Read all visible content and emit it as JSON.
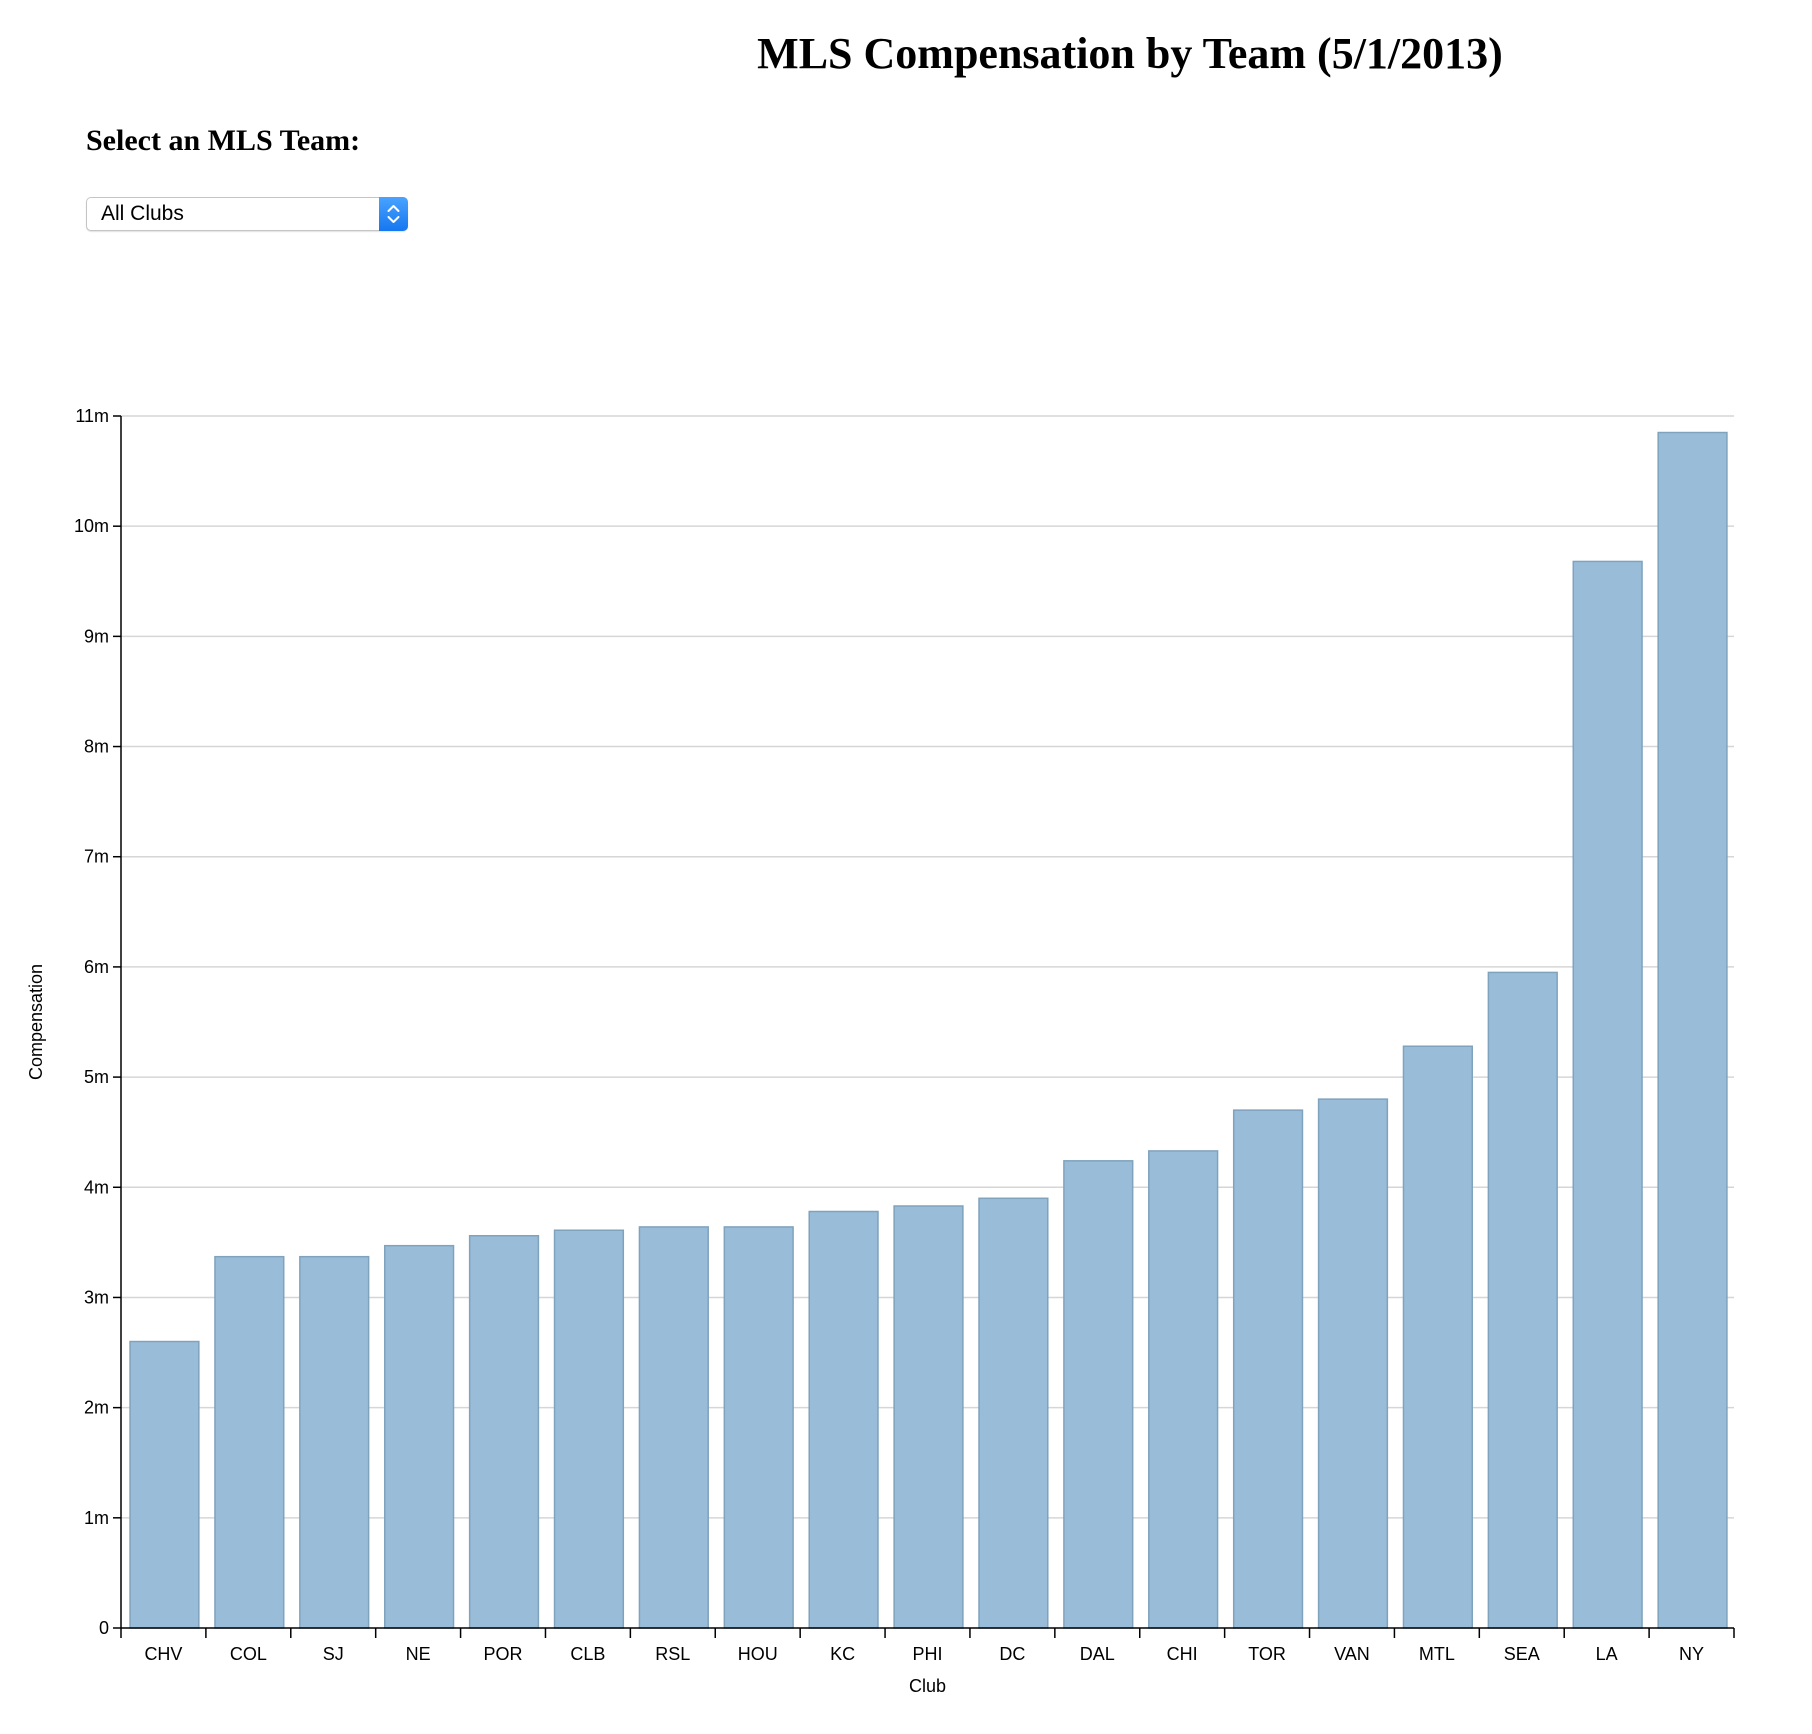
{
  "page": {
    "title": "MLS Compensation by Team (5/1/2013)",
    "select_label": "Select an MLS Team:",
    "team_select": {
      "value": "All Clubs"
    }
  },
  "colors": {
    "bar_fill": "#99bdd9",
    "bar_stroke": "#7fa2bd",
    "grid": "#d6d6d6",
    "select_accent": "#1577f0"
  },
  "icons": {
    "select_arrow": "chevron-up-down-icon"
  },
  "chart_data": {
    "type": "bar",
    "title": "",
    "xlabel": "Club",
    "ylabel": "Compensation",
    "ylim": [
      0,
      11000000
    ],
    "yticks": [
      0,
      1000000,
      2000000,
      3000000,
      4000000,
      5000000,
      6000000,
      7000000,
      8000000,
      9000000,
      10000000,
      11000000
    ],
    "ytick_labels": [
      "0",
      "1m",
      "2m",
      "3m",
      "4m",
      "5m",
      "6m",
      "7m",
      "8m",
      "9m",
      "10m",
      "11m"
    ],
    "grid": true,
    "categories": [
      "CHV",
      "COL",
      "SJ",
      "NE",
      "POR",
      "CLB",
      "RSL",
      "HOU",
      "KC",
      "PHI",
      "DC",
      "DAL",
      "CHI",
      "TOR",
      "VAN",
      "MTL",
      "SEA",
      "LA",
      "NY"
    ],
    "values": [
      2600000,
      3370000,
      3370000,
      3470000,
      3560000,
      3610000,
      3640000,
      3640000,
      3780000,
      3830000,
      3900000,
      4240000,
      4330000,
      4700000,
      4800000,
      5280000,
      5950000,
      9680000,
      10850000
    ]
  }
}
